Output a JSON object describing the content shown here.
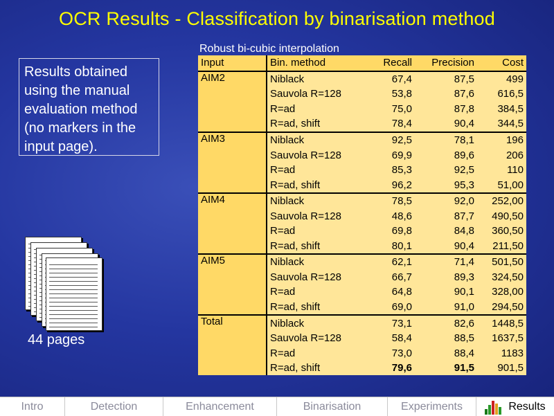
{
  "slide": {
    "title": "OCR Results - Classification by binarisation method",
    "note": "Results obtained using the manual evaluation method (no markers in the input page).",
    "pages_caption": "44 pages"
  },
  "table": {
    "caption": "Robust bi-cubic interpolation",
    "headers": [
      "Input",
      "Bin. method",
      "Recall",
      "Precision",
      "Cost"
    ],
    "groups": [
      {
        "input": "AIM2",
        "rows": [
          [
            "Niblack",
            "67,4",
            "87,5",
            "499"
          ],
          [
            "Sauvola R=128",
            "53,8",
            "87,6",
            "616,5"
          ],
          [
            "R=ad",
            "75,0",
            "87,8",
            "384,5"
          ],
          [
            "R=ad, shift",
            "78,4",
            "90,4",
            "344,5"
          ]
        ]
      },
      {
        "input": "AIM3",
        "rows": [
          [
            "Niblack",
            "92,5",
            "78,1",
            "196"
          ],
          [
            "Sauvola R=128",
            "69,9",
            "89,6",
            "206"
          ],
          [
            "R=ad",
            "85,3",
            "92,5",
            "110"
          ],
          [
            "R=ad, shift",
            "96,2",
            "95,3",
            "51,00"
          ]
        ]
      },
      {
        "input": "AIM4",
        "rows": [
          [
            "Niblack",
            "78,5",
            "92,0",
            "252,00"
          ],
          [
            "Sauvola R=128",
            "48,6",
            "87,7",
            "490,50"
          ],
          [
            "R=ad",
            "69,8",
            "84,8",
            "360,50"
          ],
          [
            "R=ad, shift",
            "80,1",
            "90,4",
            "211,50"
          ]
        ]
      },
      {
        "input": "AIM5",
        "rows": [
          [
            "Niblack",
            "62,1",
            "71,4",
            "501,50"
          ],
          [
            "Sauvola R=128",
            "66,7",
            "89,3",
            "324,50"
          ],
          [
            "R=ad",
            "64,8",
            "90,1",
            "328,00"
          ],
          [
            "R=ad, shift",
            "69,0",
            "91,0",
            "294,50"
          ]
        ]
      },
      {
        "input": "Total",
        "rows": [
          [
            "Niblack",
            "73,1",
            "82,6",
            "1448,5"
          ],
          [
            "Sauvola R=128",
            "58,4",
            "88,5",
            "1637,5"
          ],
          [
            "R=ad",
            "73,0",
            "88,4",
            "1183"
          ],
          [
            "R=ad, shift",
            "79,6",
            "91,5",
            "901,5"
          ]
        ]
      }
    ]
  },
  "nav": {
    "tabs": [
      {
        "label": "Intro"
      },
      {
        "label": "Detection"
      },
      {
        "label": "Enhancement"
      },
      {
        "label": "Binarisation"
      },
      {
        "label": "Experiments"
      },
      {
        "label": "Results"
      }
    ]
  },
  "colors": {
    "title": "#ffff00",
    "table_header": "#ffd966",
    "table_body": "#ffe699"
  }
}
